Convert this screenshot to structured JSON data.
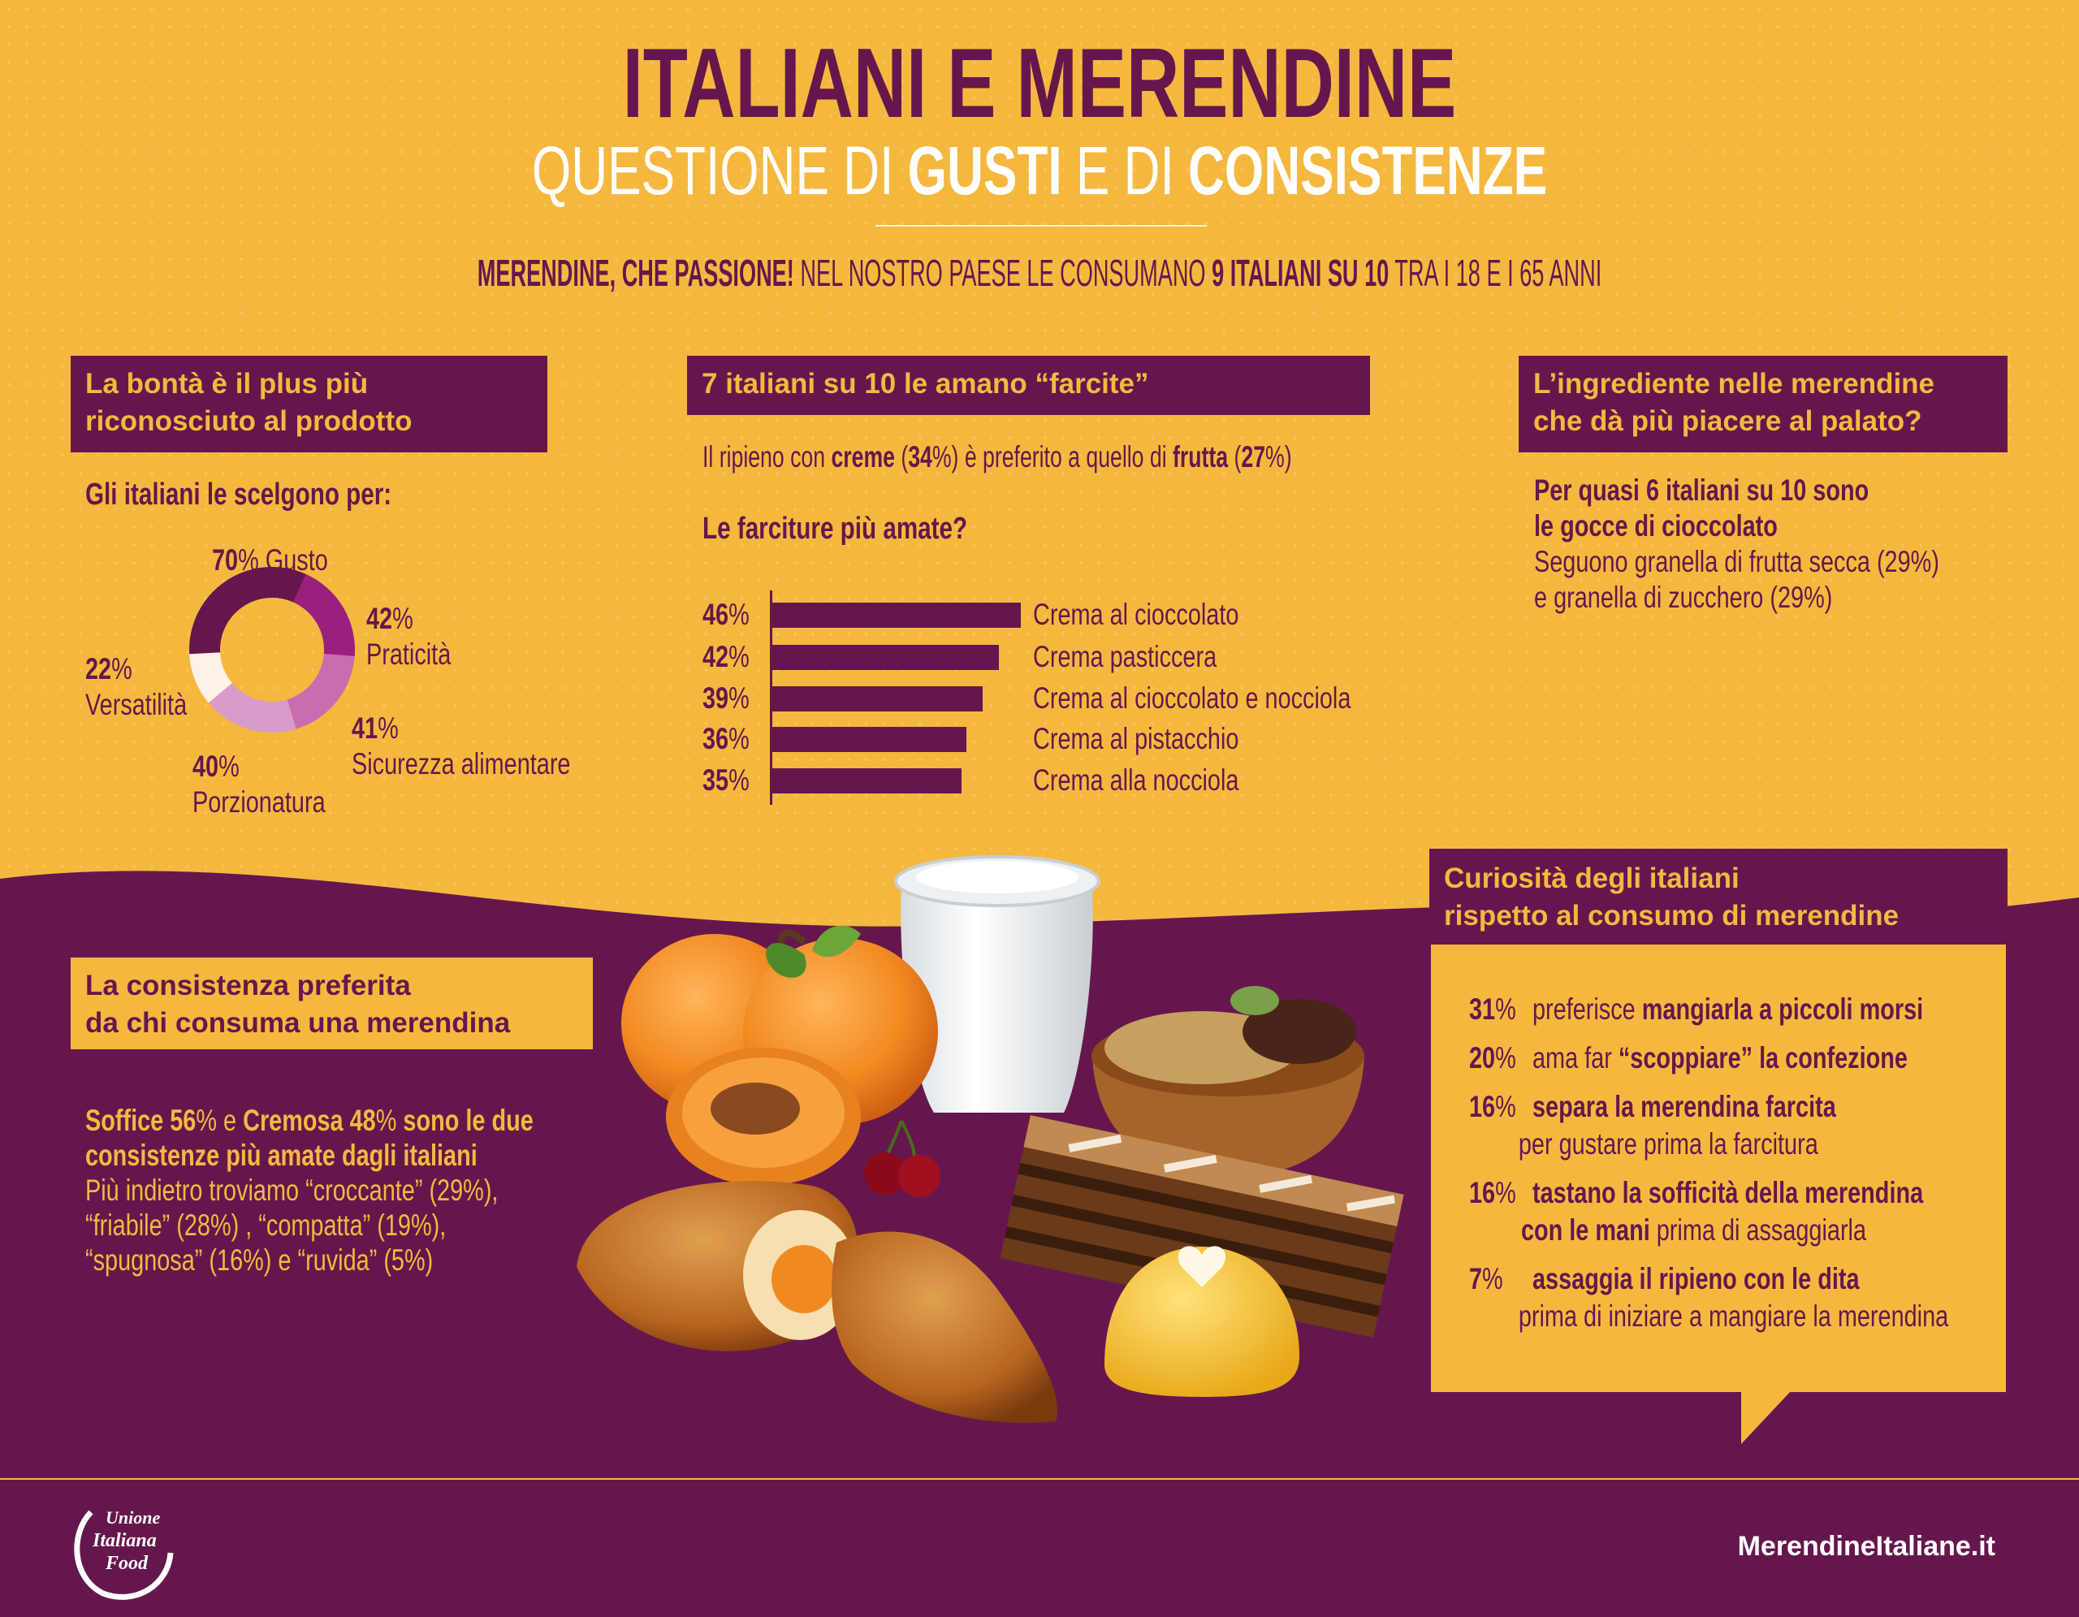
{
  "colors": {
    "purple": "#65174d",
    "yellow": "#f5b83f",
    "white": "#ffffff"
  },
  "header": {
    "title": "ITALIANI E MERENDINE",
    "subtitle": {
      "a": "QUESTIONE DI ",
      "b": "GUSTI",
      "c": " E DI ",
      "d": "CONSISTENZE"
    },
    "tagline": {
      "a": "MERENDINE, CHE PASSIONE!",
      "b": " NEL NOSTRO PAESE LE CONSUMANO ",
      "c": "9 ITALIANI SU 10",
      "d": " TRA I 18 E I 65 ANNI"
    }
  },
  "bonta": {
    "heading": [
      "La bontà è il plus più",
      "riconosciuto al prodotto"
    ],
    "lead": "Gli italiani le scelgono per:"
  },
  "farcite": {
    "heading": "7 italiani su 10 le amano “farcite”",
    "intro": {
      "a": "Il ripieno con ",
      "b": "creme",
      "c": " (",
      "d": "34",
      "e": "%) è preferito a quello di ",
      "f": "frutta",
      "g": " (",
      "h": "27",
      "i": "%)"
    },
    "question": "Le farciture più amate?"
  },
  "ingrediente": {
    "heading": [
      "L’ingrediente nelle merendine",
      "che dà più piacere al palato?"
    ],
    "bold_lines": [
      "Per quasi 6 italiani su 10 sono",
      "le gocce di cioccolato"
    ],
    "lines": [
      "Seguono granella di frutta secca (29%)",
      "e granella di zucchero (29%)"
    ]
  },
  "consistenza": {
    "heading": [
      "La consistenza preferita",
      "da chi consuma una merendina"
    ],
    "line1": {
      "a": "Soffice 56",
      "b": "%",
      "c": " e ",
      "d": "Cremosa 48",
      "e": "%",
      "f": " sono le due"
    },
    "line2": "consistenze più amate dagli italiani",
    "lines": [
      "Più indietro troviamo “croccante” (29%),",
      "“friabile” (28%) , “compatta” (19%),",
      "“spugnosa” (16%)  e “ruvida” (5%)"
    ]
  },
  "curiosita": {
    "heading": [
      "Curiosità degli italiani",
      "rispetto al consumo di merendine"
    ],
    "items": [
      {
        "num": "31",
        "pct": "%",
        "a": "preferisce ",
        "b": "mangiarla a piccoli morsi"
      },
      {
        "num": "20",
        "pct": "%",
        "a": "ama far ",
        "b": "“scoppiare” la confezione"
      },
      {
        "num": "16",
        "pct": "%",
        "b": "separa la merendina farcita",
        "c": "per gustare prima la farcitura"
      },
      {
        "num": "16",
        "pct": "%",
        "b": "tastano la sofficità della merendina",
        "d": "con le mani",
        "e": " prima di assaggiarla"
      },
      {
        "num": "7",
        "pct": "%",
        "b": "assaggia il ripieno con le dita",
        "c": "prima di iniziare a mangiare la merendina"
      }
    ]
  },
  "footer": {
    "logo_text": [
      "Unione",
      "Italiana",
      "Food"
    ],
    "website": "MerendineItaliane.it"
  },
  "chart_data": [
    {
      "type": "pie",
      "variant": "donut",
      "title": "Gli italiani le scelgono per:",
      "slices": [
        {
          "label": "Gusto",
          "num": "70",
          "value": 70,
          "color": "#65174d"
        },
        {
          "label": "Praticità",
          "num": "42",
          "value": 42,
          "color": "#9b1f7e"
        },
        {
          "label": "Sicurezza alimentare",
          "num": "41",
          "value": 41,
          "color": "#c86db0"
        },
        {
          "label": "Porzionatura",
          "num": "40",
          "value": 40,
          "color": "#d99bca"
        },
        {
          "label": "Versatilità",
          "num": "22",
          "value": 22,
          "color": "#fdf1e8"
        }
      ],
      "unit": "%"
    },
    {
      "type": "bar",
      "orientation": "horizontal",
      "title": "Le farciture più amate?",
      "categories": [
        "Crema al cioccolato",
        "Crema pasticcera",
        "Crema al cioccolato e nocciola",
        "Crema al pistacchio",
        "Crema alla nocciola"
      ],
      "values": [
        46,
        42,
        39,
        36,
        35
      ],
      "num_labels": [
        "46",
        "42",
        "39",
        "36",
        "35"
      ],
      "unit": "%",
      "bar_color": "#65174d",
      "grid": false
    }
  ]
}
